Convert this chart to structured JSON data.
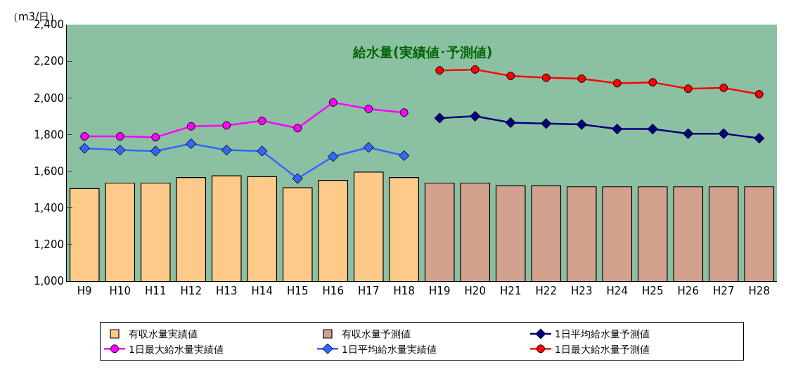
{
  "chart_data": {
    "type": "bar",
    "title": "給水量(実績値･予測値)",
    "ylabel": "（m3/日）",
    "categories": [
      "H9",
      "H10",
      "H11",
      "H12",
      "H13",
      "H14",
      "H15",
      "H16",
      "H17",
      "H18",
      "H19",
      "H20",
      "H21",
      "H22",
      "H23",
      "H24",
      "H25",
      "H26",
      "H27",
      "H28"
    ],
    "series": [
      {
        "name": "有収水量実績値",
        "color": "#fdca8a",
        "values": [
          1505,
          1535,
          1535,
          1565,
          1575,
          1570,
          1510,
          1550,
          1595,
          1565,
          null,
          null,
          null,
          null,
          null,
          null,
          null,
          null,
          null,
          null
        ]
      },
      {
        "name": "有収水量予測値",
        "color": "#d2a28f",
        "values": [
          null,
          null,
          null,
          null,
          null,
          null,
          null,
          null,
          null,
          null,
          1535,
          1535,
          1520,
          1520,
          1515,
          1515,
          1515,
          1515,
          1515,
          1515
        ]
      },
      {
        "name": "1日平均給水量予測値",
        "type": "line",
        "color": "#000080",
        "marker": "diamond",
        "values": [
          null,
          null,
          null,
          null,
          null,
          null,
          null,
          null,
          null,
          null,
          1890,
          1900,
          1865,
          1860,
          1855,
          1830,
          1830,
          1805,
          1805,
          1780
        ]
      },
      {
        "name": "1日最大給水量実績値",
        "type": "line",
        "color": "#ff00ff",
        "marker": "circle",
        "values": [
          1790,
          1790,
          1785,
          1845,
          1850,
          1875,
          1835,
          1975,
          1940,
          1920,
          null,
          null,
          null,
          null,
          null,
          null,
          null,
          null,
          null,
          null
        ]
      },
      {
        "name": "1日平均給水量実績値",
        "type": "line",
        "color": "#3366ff",
        "marker": "diamond",
        "values": [
          1725,
          1715,
          1710,
          1750,
          1715,
          1710,
          1560,
          1680,
          1730,
          1685,
          null,
          null,
          null,
          null,
          null,
          null,
          null,
          null,
          null,
          null
        ]
      },
      {
        "name": "1日最大給水量予測値",
        "type": "line",
        "color": "#ff0000",
        "marker": "circle",
        "values": [
          null,
          null,
          null,
          null,
          null,
          null,
          null,
          null,
          null,
          null,
          2150,
          2155,
          2120,
          2110,
          2105,
          2080,
          2085,
          2050,
          2055,
          2020
        ]
      }
    ],
    "ylim": [
      1000,
      2400
    ],
    "yticks": [
      {
        "value": 1000,
        "label": "1,000"
      },
      {
        "value": 1200,
        "label": "1,200"
      },
      {
        "value": 1400,
        "label": "1,400"
      },
      {
        "value": 1600,
        "label": "1,600"
      },
      {
        "value": 1800,
        "label": "1,800"
      },
      {
        "value": 2000,
        "label": "2,000"
      },
      {
        "value": 2200,
        "label": "2,200"
      },
      {
        "value": 2400,
        "label": "2,400"
      }
    ],
    "grid": false,
    "legend": "bottom"
  }
}
